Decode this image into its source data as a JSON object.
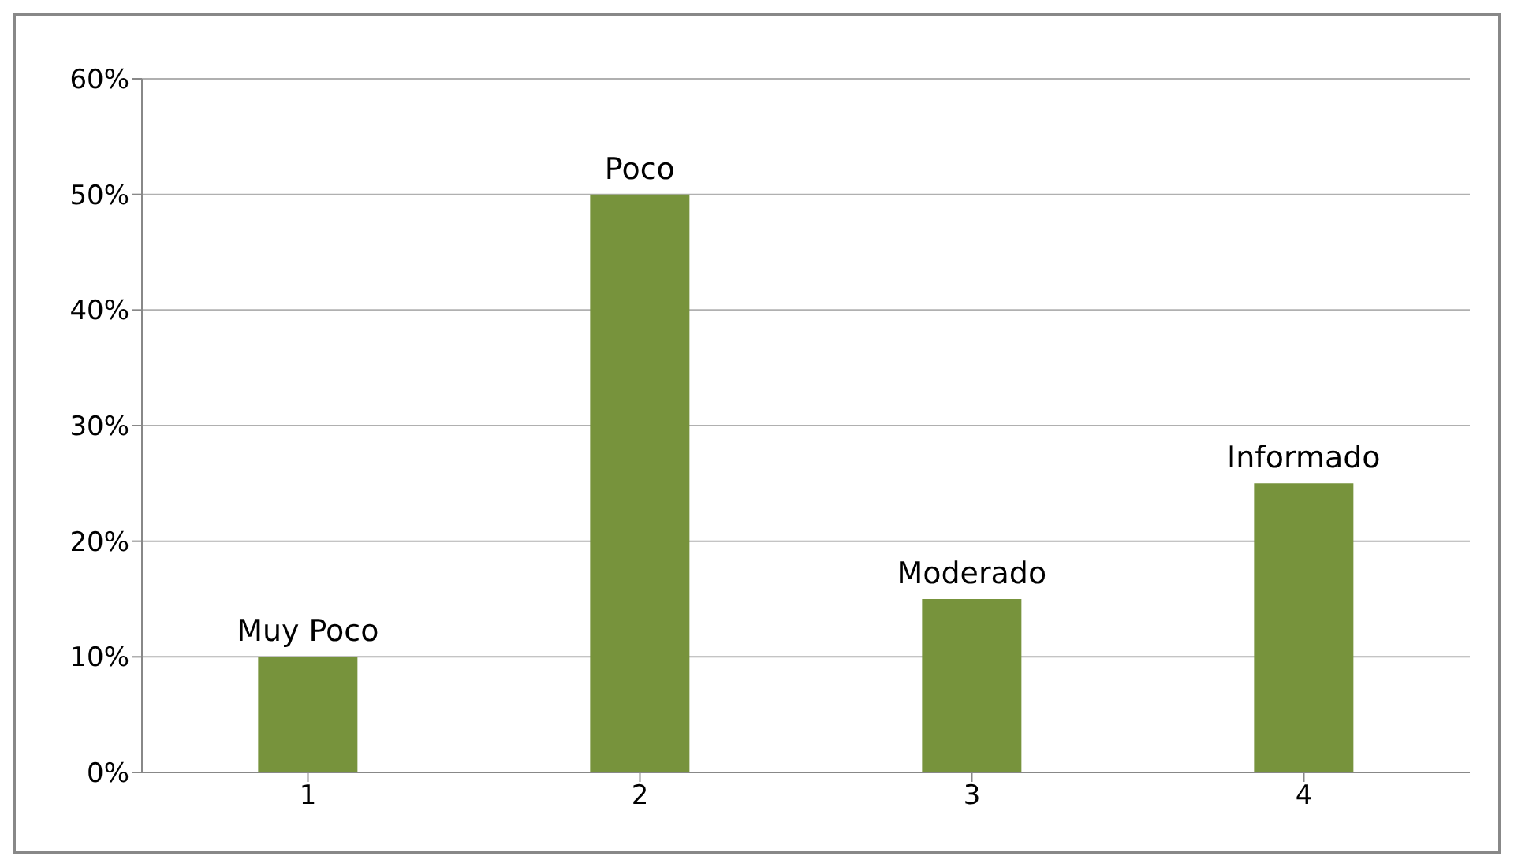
{
  "chart_data": {
    "type": "bar",
    "categories": [
      "1",
      "2",
      "3",
      "4"
    ],
    "values": [
      10,
      50,
      15,
      25
    ],
    "color": "#77933c",
    "ylim": [
      0,
      60
    ],
    "yticks": [
      {
        "value": 0,
        "label": "0%"
      },
      {
        "value": 10,
        "label": "10%"
      },
      {
        "value": 20,
        "label": "20%"
      },
      {
        "value": 30,
        "label": "30%"
      },
      {
        "value": 40,
        "label": "40%"
      },
      {
        "value": 50,
        "label": "50%"
      },
      {
        "value": 60,
        "label": "60%"
      }
    ],
    "grid": "y",
    "legend": false,
    "annotations": [
      {
        "text": "Muy Poco",
        "x": "1",
        "y": 10
      },
      {
        "text": "Poco",
        "x": "2",
        "y": 50
      },
      {
        "text": "Moderado",
        "x": "3",
        "y": 15
      },
      {
        "text": "Informado",
        "x": "4",
        "y": 25
      }
    ]
  }
}
